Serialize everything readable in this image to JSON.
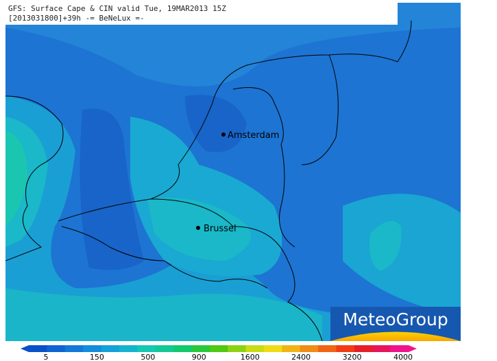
{
  "header": {
    "line1": "GFS: Surface Cape & CIN valid Tue, 19MAR2013 15Z",
    "line2": "[2013031800]+39h -= BeNeLux =-"
  },
  "cities": [
    {
      "name": "Amsterdam"
    },
    {
      "name": "Brussel"
    }
  ],
  "legend": {
    "labels": [
      "5",
      "150",
      "500",
      "900",
      "1600",
      "2400",
      "3200",
      "4000"
    ]
  },
  "logo": "MeteoGroup"
}
